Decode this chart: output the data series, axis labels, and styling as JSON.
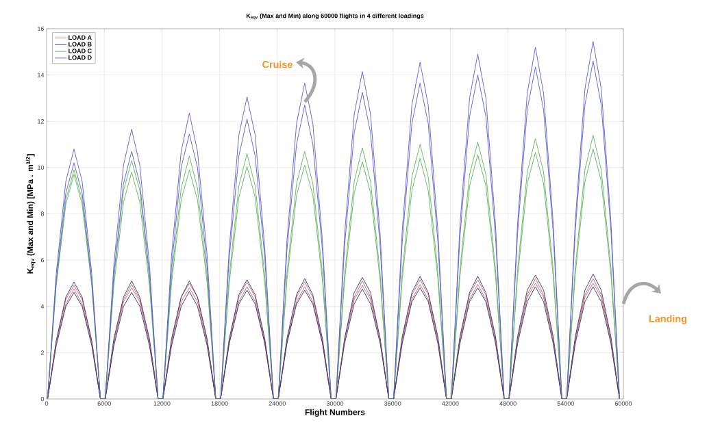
{
  "chart_data": {
    "type": "line",
    "title": "K$_{eqv}$ (Max and Min) along 60000 flights in 4 different loadings",
    "xlabel": "Flight Numbers",
    "ylabel": "K$_{eqv}$ (Max and Min) [MPa . m$^{1/2}$]",
    "annotations": [
      "Cruise",
      "Landing"
    ],
    "x": [
      100,
      1000,
      2000,
      2850,
      3700,
      4700,
      5600,
      6100,
      7000,
      8000,
      8850,
      9700,
      10700,
      11600,
      12100,
      13000,
      14000,
      14850,
      15700,
      16700,
      17600,
      18100,
      19000,
      20000,
      20850,
      21700,
      22700,
      23600,
      24100,
      25000,
      26000,
      26850,
      27700,
      28700,
      29600,
      30100,
      31000,
      32000,
      32850,
      33700,
      34700,
      35600,
      36100,
      37000,
      38000,
      38850,
      39700,
      40700,
      41600,
      42100,
      43000,
      44000,
      44850,
      45700,
      46700,
      47600,
      48100,
      49000,
      50000,
      50850,
      51700,
      52700,
      53600,
      54100,
      55000,
      56000,
      56850,
      57700,
      58700,
      59600
    ],
    "series": [
      {
        "name": "LOAD A",
        "color": "#c86464",
        "values": [
          0,
          2.5,
          4.3,
          4.9,
          4.3,
          2.5,
          0,
          0,
          2.5,
          4.3,
          4.95,
          4.3,
          2.5,
          0,
          0,
          2.5,
          4.4,
          5.0,
          4.4,
          2.5,
          0,
          0,
          2.5,
          4.4,
          5.05,
          4.4,
          2.5,
          0,
          0,
          2.5,
          4.4,
          5.05,
          4.4,
          2.5,
          0,
          0,
          2.6,
          4.4,
          5.1,
          4.4,
          2.6,
          0,
          0,
          2.6,
          4.5,
          5.15,
          4.5,
          2.6,
          0,
          0,
          2.6,
          4.5,
          5.15,
          4.5,
          2.6,
          0,
          0,
          2.6,
          4.5,
          5.2,
          4.5,
          2.6,
          0,
          0,
          2.6,
          4.5,
          5.2,
          4.5,
          2.6,
          0
        ]
      },
      {
        "name": "LOAD B",
        "color": "#303070",
        "values": [
          0,
          2.5,
          4.4,
          5.05,
          4.4,
          2.5,
          0,
          0,
          2.6,
          4.4,
          5.1,
          4.4,
          2.6,
          0,
          0,
          2.6,
          4.4,
          5.1,
          4.4,
          2.6,
          0,
          0,
          2.6,
          4.5,
          5.15,
          4.5,
          2.6,
          0,
          0,
          2.6,
          4.5,
          5.2,
          4.5,
          2.6,
          0,
          0,
          2.6,
          4.6,
          5.25,
          4.6,
          2.6,
          0,
          0,
          2.7,
          4.6,
          5.3,
          4.6,
          2.7,
          0,
          0,
          2.7,
          4.6,
          5.3,
          4.6,
          2.7,
          0,
          0,
          2.7,
          4.7,
          5.35,
          4.7,
          2.7,
          0,
          0,
          2.7,
          4.7,
          5.4,
          4.7,
          2.7,
          0
        ]
      },
      {
        "name": "LOAD C",
        "color": "#5cb45c",
        "values": [
          0,
          5.0,
          8.6,
          9.9,
          8.6,
          5.0,
          0,
          0,
          5.2,
          9.0,
          10.3,
          9.0,
          5.2,
          0,
          0,
          5.3,
          9.1,
          10.5,
          9.1,
          5.3,
          0,
          0,
          5.3,
          9.2,
          10.6,
          9.2,
          5.3,
          0,
          0,
          5.4,
          9.3,
          10.7,
          9.3,
          5.4,
          0,
          0,
          5.4,
          9.4,
          10.85,
          9.4,
          5.4,
          0,
          0,
          5.5,
          9.6,
          11.0,
          9.6,
          5.5,
          0,
          0,
          5.6,
          9.7,
          11.1,
          9.7,
          5.6,
          0,
          0,
          5.6,
          9.8,
          11.25,
          9.8,
          5.6,
          0,
          0,
          5.7,
          9.9,
          11.4,
          9.9,
          5.7,
          0
        ]
      },
      {
        "name": "LOAD D",
        "color": "#5a5ad2",
        "values": [
          0,
          5.4,
          9.4,
          10.8,
          9.4,
          5.4,
          0,
          0,
          5.8,
          10.1,
          11.65,
          10.1,
          5.8,
          0,
          0,
          6.2,
          10.7,
          12.35,
          10.7,
          6.2,
          0,
          0,
          6.5,
          11.4,
          13.05,
          11.4,
          6.5,
          0,
          0,
          6.8,
          11.9,
          13.65,
          11.9,
          6.8,
          0,
          0,
          7.1,
          12.3,
          14.15,
          12.3,
          7.1,
          0,
          0,
          7.3,
          12.7,
          14.55,
          12.7,
          7.3,
          0,
          0,
          7.5,
          13.0,
          14.9,
          13.0,
          7.5,
          0,
          0,
          7.6,
          13.2,
          15.2,
          13.2,
          7.6,
          0,
          0,
          7.7,
          13.4,
          15.45,
          13.4,
          7.7,
          0
        ]
      },
      {
        "color": "#c86464",
        "values": [
          0,
          2.4,
          4.1,
          4.75,
          4.1,
          2.4,
          0,
          0,
          2.4,
          4.2,
          4.8,
          4.2,
          2.4,
          0,
          0,
          2.4,
          4.2,
          4.8,
          4.2,
          2.4,
          0,
          0,
          2.4,
          4.2,
          4.85,
          4.2,
          2.4,
          0,
          0,
          2.4,
          4.2,
          4.85,
          4.2,
          2.4,
          0,
          0,
          2.5,
          4.3,
          4.9,
          4.3,
          2.5,
          0,
          0,
          2.5,
          4.3,
          4.95,
          4.3,
          2.5,
          0,
          0,
          2.5,
          4.3,
          4.95,
          4.3,
          2.5,
          0,
          0,
          2.5,
          4.4,
          5.0,
          4.4,
          2.5,
          0,
          0,
          2.5,
          4.4,
          5.0,
          4.4,
          2.5,
          0
        ]
      },
      {
        "color": "#303070",
        "values": [
          0,
          2.3,
          4.0,
          4.6,
          4.0,
          2.3,
          0,
          0,
          2.3,
          4.0,
          4.6,
          4.0,
          2.3,
          0,
          0,
          2.3,
          4.0,
          4.65,
          4.0,
          2.3,
          0,
          0,
          2.4,
          4.1,
          4.7,
          4.1,
          2.4,
          0,
          0,
          2.4,
          4.1,
          4.7,
          4.1,
          2.4,
          0,
          0,
          2.4,
          4.1,
          4.75,
          4.1,
          2.4,
          0,
          0,
          2.4,
          4.2,
          4.8,
          4.2,
          2.4,
          0,
          0,
          2.4,
          4.2,
          4.8,
          4.2,
          2.4,
          0,
          0,
          2.4,
          4.2,
          4.85,
          4.2,
          2.4,
          0,
          0,
          2.4,
          4.2,
          4.85,
          4.2,
          2.4,
          0
        ]
      },
      {
        "color": "#5cb45c",
        "values": [
          0,
          4.9,
          8.4,
          9.7,
          8.4,
          4.9,
          0,
          0,
          4.9,
          8.5,
          9.8,
          8.5,
          4.9,
          0,
          0,
          5.0,
          8.6,
          9.9,
          8.6,
          5.0,
          0,
          0,
          5.0,
          8.7,
          10.05,
          8.7,
          5.0,
          0,
          0,
          5.1,
          8.8,
          10.1,
          8.8,
          5.1,
          0,
          0,
          5.1,
          8.9,
          10.25,
          8.9,
          5.1,
          0,
          0,
          5.2,
          9.0,
          10.4,
          9.0,
          5.2,
          0,
          0,
          5.3,
          9.2,
          10.55,
          9.2,
          5.3,
          0,
          0,
          5.3,
          9.3,
          10.65,
          9.3,
          5.3,
          0,
          0,
          5.4,
          9.4,
          10.8,
          9.4,
          5.4,
          0
        ]
      },
      {
        "color": "#5a5ad2",
        "values": [
          0,
          5.1,
          8.9,
          10.2,
          8.9,
          5.1,
          0,
          0,
          5.4,
          9.3,
          10.7,
          9.3,
          5.4,
          0,
          0,
          5.7,
          10.0,
          11.45,
          10.0,
          5.7,
          0,
          0,
          6.1,
          10.5,
          12.1,
          10.5,
          6.1,
          0,
          0,
          6.4,
          11.0,
          12.7,
          11.0,
          6.4,
          0,
          0,
          6.6,
          11.5,
          13.25,
          11.5,
          6.6,
          0,
          0,
          6.8,
          11.9,
          13.65,
          11.9,
          6.8,
          0,
          0,
          7.0,
          12.2,
          14.0,
          12.2,
          7.0,
          0,
          0,
          7.2,
          12.5,
          14.35,
          12.5,
          7.2,
          0,
          0,
          7.3,
          12.7,
          14.6,
          12.7,
          7.3,
          0
        ]
      }
    ],
    "xlim": [
      0,
      60000
    ],
    "ylim": [
      0,
      16
    ],
    "xticks": [
      0,
      6000,
      12000,
      18000,
      24000,
      30000,
      36000,
      42000,
      48000,
      54000,
      60000
    ],
    "yticks": [
      0,
      2,
      4,
      6,
      8,
      10,
      12,
      14,
      16
    ],
    "grid": true,
    "legend": "top left",
    "line_style": "solid"
  }
}
